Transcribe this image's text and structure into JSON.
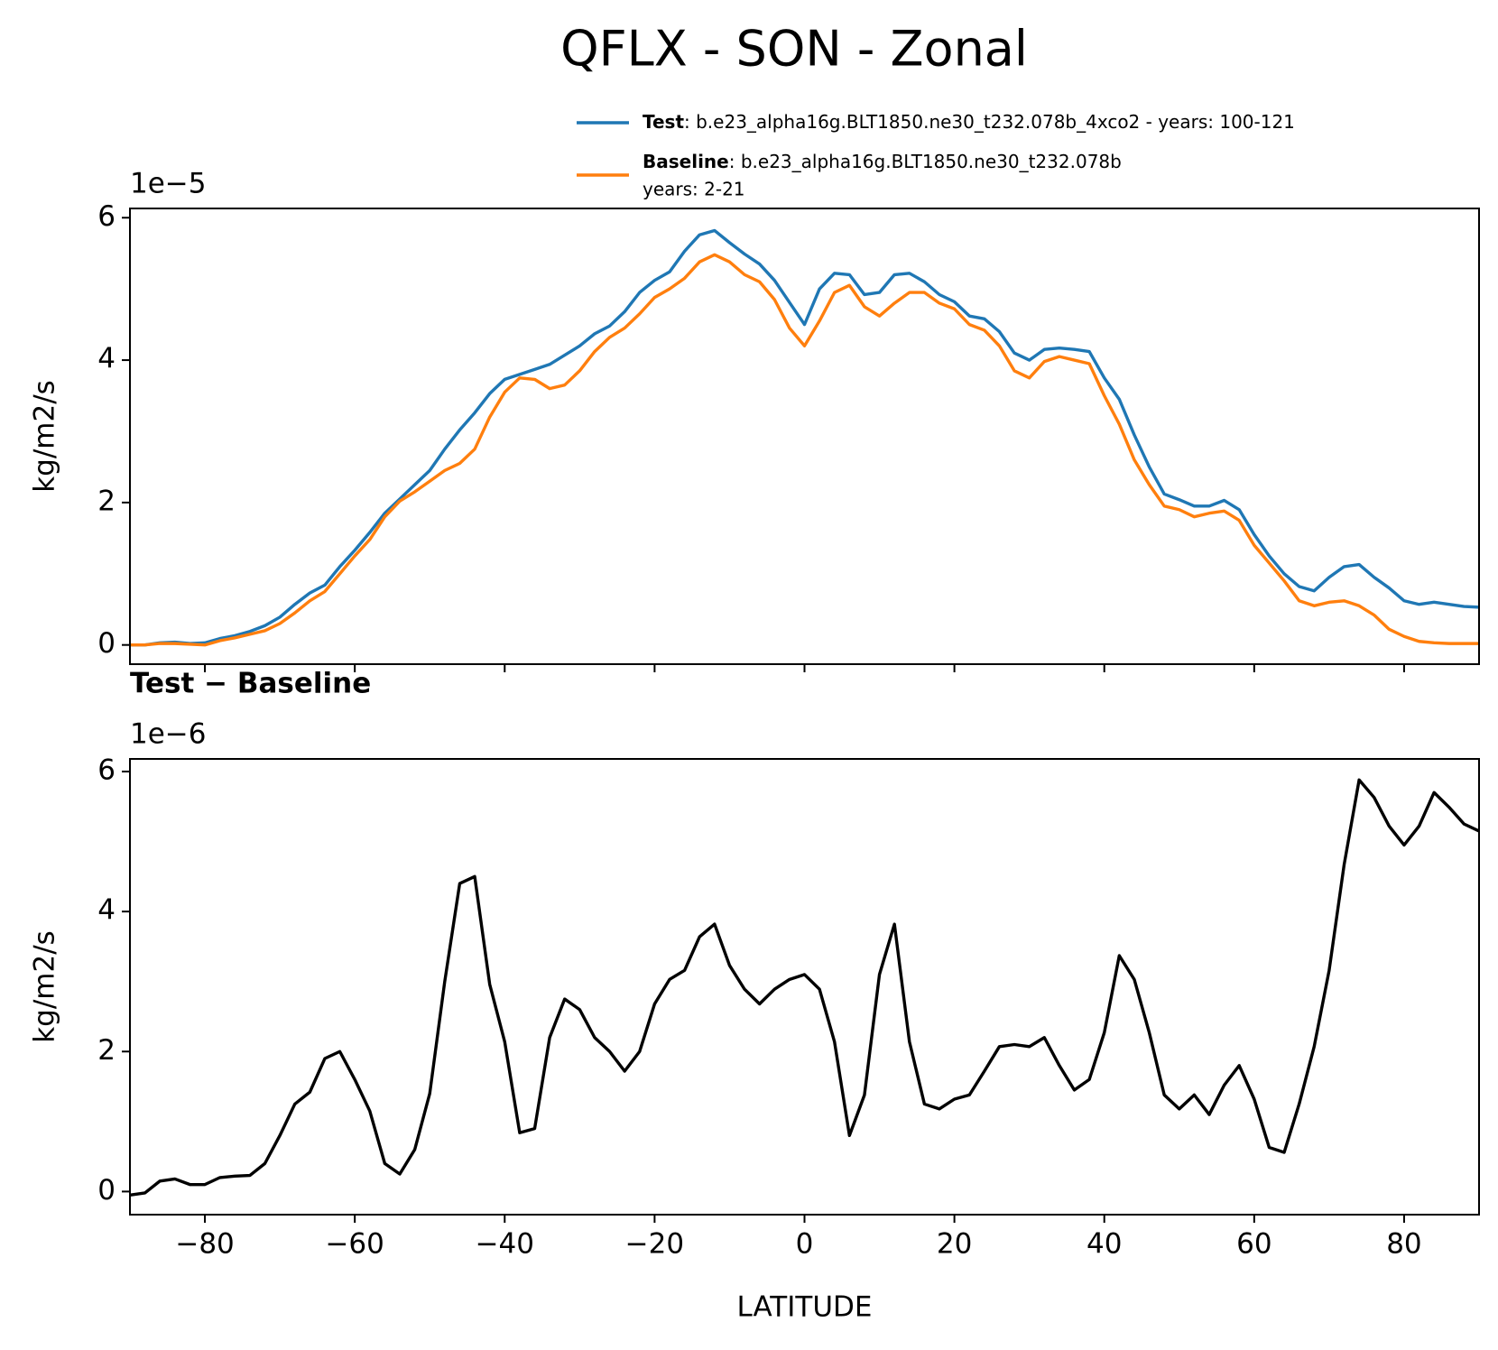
{
  "title": "QFLX - SON - Zonal",
  "chart_data": [
    {
      "type": "line",
      "y_offset_label": "1e−5",
      "y_label": "kg/m2/s",
      "legend": "above-right",
      "xlim": [
        -90,
        90
      ],
      "xticks": [
        -80,
        -60,
        -40,
        -20,
        0,
        20,
        40,
        60,
        80
      ],
      "ylim": [
        -0.27,
        6.13
      ],
      "yticks": [
        0,
        2,
        4,
        6
      ],
      "x": [
        -90,
        -88,
        -86,
        -84,
        -82,
        -80,
        -78,
        -76,
        -74,
        -72,
        -70,
        -68,
        -66,
        -64,
        -62,
        -60,
        -58,
        -56,
        -54,
        -52,
        -50,
        -48,
        -46,
        -44,
        -42,
        -40,
        -38,
        -36,
        -34,
        -32,
        -30,
        -28,
        -26,
        -24,
        -22,
        -20,
        -18,
        -16,
        -14,
        -12,
        -10,
        -8,
        -6,
        -4,
        -2,
        0,
        2,
        4,
        6,
        8,
        10,
        12,
        14,
        16,
        18,
        20,
        22,
        24,
        26,
        28,
        30,
        32,
        34,
        36,
        38,
        40,
        42,
        44,
        46,
        48,
        50,
        52,
        54,
        56,
        58,
        60,
        62,
        64,
        66,
        68,
        70,
        72,
        74,
        76,
        78,
        80,
        82,
        84,
        86,
        88,
        90
      ],
      "series": [
        {
          "name": "Test",
          "description": [
            ": b.e23_alpha16g.BLT1850.ne30_t232.078b_4xco2 - years: 100-121"
          ],
          "color": "#1f77b4",
          "values": [
            0,
            0,
            0.03,
            0.04,
            0.02,
            0.03,
            0.09,
            0.13,
            0.19,
            0.27,
            0.39,
            0.57,
            0.73,
            0.84,
            1.1,
            1.33,
            1.58,
            1.85,
            2.05,
            2.25,
            2.45,
            2.75,
            3.02,
            3.26,
            3.53,
            3.73,
            3.8,
            3.87,
            3.94,
            4.07,
            4.2,
            4.37,
            4.48,
            4.68,
            4.95,
            5.12,
            5.24,
            5.53,
            5.76,
            5.82,
            5.65,
            5.49,
            5.35,
            5.12,
            4.81,
            4.5,
            5.0,
            5.22,
            5.2,
            4.92,
            4.95,
            5.2,
            5.22,
            5.1,
            4.92,
            4.82,
            4.62,
            4.58,
            4.4,
            4.1,
            4.0,
            4.15,
            4.17,
            4.15,
            4.12,
            3.75,
            3.45,
            2.95,
            2.5,
            2.12,
            2.04,
            1.95,
            1.95,
            2.03,
            1.9,
            1.55,
            1.25,
            1.0,
            0.82,
            0.76,
            0.95,
            1.1,
            1.13,
            0.95,
            0.8,
            0.62,
            0.57,
            0.6,
            0.57,
            0.54,
            0.53
          ]
        },
        {
          "name": "Baseline",
          "description": [
            ": b.e23_alpha16g.BLT1850.ne30_t232.078b",
            "years: 2-21"
          ],
          "color": "#ff7f0e",
          "values": [
            0,
            0,
            0.02,
            0.02,
            0.01,
            0,
            0.06,
            0.1,
            0.15,
            0.2,
            0.3,
            0.45,
            0.62,
            0.75,
            1.0,
            1.25,
            1.48,
            1.8,
            2.02,
            2.15,
            2.3,
            2.45,
            2.55,
            2.75,
            3.2,
            3.55,
            3.75,
            3.73,
            3.6,
            3.65,
            3.85,
            4.12,
            4.32,
            4.45,
            4.65,
            4.88,
            5.0,
            5.15,
            5.38,
            5.48,
            5.38,
            5.2,
            5.1,
            4.85,
            4.45,
            4.2,
            4.55,
            4.95,
            5.05,
            4.75,
            4.62,
            4.8,
            4.95,
            4.95,
            4.8,
            4.72,
            4.5,
            4.42,
            4.2,
            3.85,
            3.75,
            3.98,
            4.05,
            4.0,
            3.95,
            3.5,
            3.1,
            2.6,
            2.25,
            1.95,
            1.9,
            1.8,
            1.85,
            1.88,
            1.75,
            1.4,
            1.15,
            0.9,
            0.62,
            0.55,
            0.6,
            0.62,
            0.55,
            0.42,
            0.22,
            0.12,
            0.05,
            0.03,
            0.02,
            0.02,
            0.02
          ]
        }
      ]
    },
    {
      "type": "line",
      "title": "Test − Baseline",
      "y_offset_label": "1e−6",
      "y_label": "kg/m2/s",
      "x_label": "LATITUDE",
      "xlim": [
        -90,
        90
      ],
      "xticks": [
        {
          "value": -80,
          "label": "−80"
        },
        {
          "value": -60,
          "label": "−60"
        },
        {
          "value": -40,
          "label": "−40"
        },
        {
          "value": -20,
          "label": "−20"
        },
        0,
        20,
        40,
        60,
        80
      ],
      "ylim": [
        -0.33,
        6.18
      ],
      "yticks": [
        0,
        2,
        4,
        6
      ],
      "x": [
        -90,
        -88,
        -86,
        -84,
        -82,
        -80,
        -78,
        -76,
        -74,
        -72,
        -70,
        -68,
        -66,
        -64,
        -62,
        -60,
        -58,
        -56,
        -54,
        -52,
        -50,
        -48,
        -46,
        -44,
        -42,
        -40,
        -38,
        -36,
        -34,
        -32,
        -30,
        -28,
        -26,
        -24,
        -22,
        -20,
        -18,
        -16,
        -14,
        -12,
        -10,
        -8,
        -6,
        -4,
        -2,
        0,
        2,
        4,
        6,
        8,
        10,
        12,
        14,
        16,
        18,
        20,
        22,
        24,
        26,
        28,
        30,
        32,
        34,
        36,
        38,
        40,
        42,
        44,
        46,
        48,
        50,
        52,
        54,
        56,
        58,
        60,
        62,
        64,
        66,
        68,
        70,
        72,
        74,
        76,
        78,
        80,
        82,
        84,
        86,
        88,
        90
      ],
      "series": [
        {
          "color": "#000000",
          "values": [
            -0.05,
            -0.02,
            0.15,
            0.18,
            0.1,
            0.1,
            0.2,
            0.22,
            0.23,
            0.4,
            0.8,
            1.25,
            1.42,
            1.9,
            2.0,
            1.6,
            1.15,
            0.4,
            0.25,
            0.6,
            1.4,
            3.0,
            4.4,
            4.5,
            2.96,
            2.14,
            0.84,
            0.9,
            2.2,
            2.75,
            2.6,
            2.2,
            2.0,
            1.72,
            2.0,
            2.68,
            3.03,
            3.16,
            3.64,
            3.82,
            3.23,
            2.89,
            2.68,
            2.89,
            3.03,
            3.1,
            2.89,
            2.14,
            0.8,
            1.38,
            3.1,
            3.82,
            2.14,
            1.25,
            1.18,
            1.32,
            1.38,
            1.72,
            2.07,
            2.1,
            2.07,
            2.2,
            1.8,
            1.45,
            1.6,
            2.27,
            3.37,
            3.03,
            2.27,
            1.38,
            1.18,
            1.38,
            1.1,
            1.52,
            1.8,
            1.32,
            0.63,
            0.56,
            1.25,
            2.07,
            3.16,
            4.67,
            5.88,
            5.63,
            5.22,
            4.95,
            5.22,
            5.7,
            5.49,
            5.25,
            5.15
          ]
        }
      ]
    }
  ]
}
